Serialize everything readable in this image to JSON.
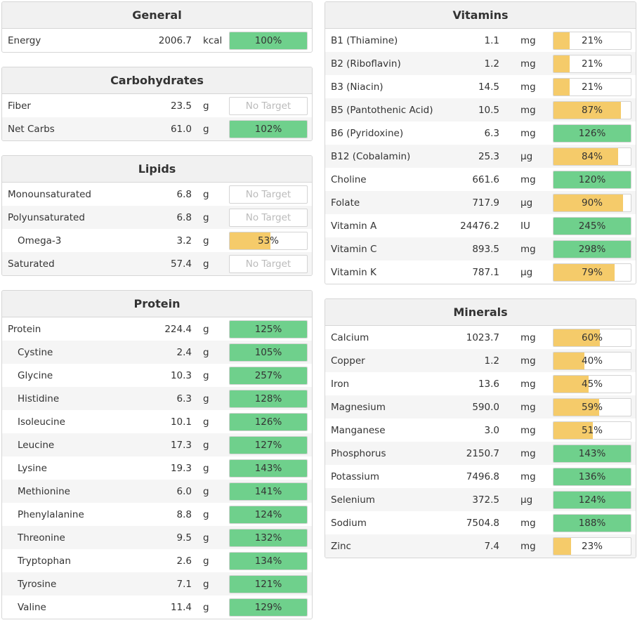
{
  "colors": {
    "green": "#6fd08c",
    "yellow": "#f5cb6a"
  },
  "left": [
    {
      "title": "General",
      "rows": [
        {
          "name": "Energy",
          "amount": "2006.7",
          "unit": "kcal",
          "pct": "100%",
          "value": 100,
          "color": "green"
        }
      ]
    },
    {
      "title": "Carbohydrates",
      "rows": [
        {
          "name": "Fiber",
          "amount": "23.5",
          "unit": "g",
          "pct": "No Target",
          "value": 0,
          "color": "none"
        },
        {
          "name": "Net Carbs",
          "amount": "61.0",
          "unit": "g",
          "pct": "102%",
          "value": 102,
          "color": "green"
        }
      ]
    },
    {
      "title": "Lipids",
      "rows": [
        {
          "name": "Monounsaturated",
          "amount": "6.8",
          "unit": "g",
          "pct": "No Target",
          "value": 0,
          "color": "none"
        },
        {
          "name": "Polyunsaturated",
          "amount": "6.8",
          "unit": "g",
          "pct": "No Target",
          "value": 0,
          "color": "none"
        },
        {
          "name": "Omega-3",
          "sub": true,
          "amount": "3.2",
          "unit": "g",
          "pct": "53%",
          "value": 53,
          "color": "yellow"
        },
        {
          "name": "Saturated",
          "amount": "57.4",
          "unit": "g",
          "pct": "No Target",
          "value": 0,
          "color": "none"
        }
      ]
    },
    {
      "title": "Protein",
      "rows": [
        {
          "name": "Protein",
          "amount": "224.4",
          "unit": "g",
          "pct": "125%",
          "value": 125,
          "color": "green"
        },
        {
          "name": "Cystine",
          "sub": true,
          "amount": "2.4",
          "unit": "g",
          "pct": "105%",
          "value": 105,
          "color": "green"
        },
        {
          "name": "Glycine",
          "sub": true,
          "amount": "10.3",
          "unit": "g",
          "pct": "257%",
          "value": 257,
          "color": "green"
        },
        {
          "name": "Histidine",
          "sub": true,
          "amount": "6.3",
          "unit": "g",
          "pct": "128%",
          "value": 128,
          "color": "green"
        },
        {
          "name": "Isoleucine",
          "sub": true,
          "amount": "10.1",
          "unit": "g",
          "pct": "126%",
          "value": 126,
          "color": "green"
        },
        {
          "name": "Leucine",
          "sub": true,
          "amount": "17.3",
          "unit": "g",
          "pct": "127%",
          "value": 127,
          "color": "green"
        },
        {
          "name": "Lysine",
          "sub": true,
          "amount": "19.3",
          "unit": "g",
          "pct": "143%",
          "value": 143,
          "color": "green"
        },
        {
          "name": "Methionine",
          "sub": true,
          "amount": "6.0",
          "unit": "g",
          "pct": "141%",
          "value": 141,
          "color": "green"
        },
        {
          "name": "Phenylalanine",
          "sub": true,
          "amount": "8.8",
          "unit": "g",
          "pct": "124%",
          "value": 124,
          "color": "green"
        },
        {
          "name": "Threonine",
          "sub": true,
          "amount": "9.5",
          "unit": "g",
          "pct": "132%",
          "value": 132,
          "color": "green"
        },
        {
          "name": "Tryptophan",
          "sub": true,
          "amount": "2.6",
          "unit": "g",
          "pct": "134%",
          "value": 134,
          "color": "green"
        },
        {
          "name": "Tyrosine",
          "sub": true,
          "amount": "7.1",
          "unit": "g",
          "pct": "121%",
          "value": 121,
          "color": "green"
        },
        {
          "name": "Valine",
          "sub": true,
          "amount": "11.4",
          "unit": "g",
          "pct": "129%",
          "value": 129,
          "color": "green"
        }
      ]
    }
  ],
  "right": [
    {
      "title": "Vitamins",
      "rows": [
        {
          "name": "B1 (Thiamine)",
          "amount": "1.1",
          "unit": "mg",
          "pct": "21%",
          "value": 21,
          "color": "yellow"
        },
        {
          "name": "B2 (Riboflavin)",
          "amount": "1.2",
          "unit": "mg",
          "pct": "21%",
          "value": 21,
          "color": "yellow"
        },
        {
          "name": "B3 (Niacin)",
          "amount": "14.5",
          "unit": "mg",
          "pct": "21%",
          "value": 21,
          "color": "yellow"
        },
        {
          "name": "B5 (Pantothenic Acid)",
          "amount": "10.5",
          "unit": "mg",
          "pct": "87%",
          "value": 87,
          "color": "yellow"
        },
        {
          "name": "B6 (Pyridoxine)",
          "amount": "6.3",
          "unit": "mg",
          "pct": "126%",
          "value": 126,
          "color": "green"
        },
        {
          "name": "B12 (Cobalamin)",
          "amount": "25.3",
          "unit": "µg",
          "pct": "84%",
          "value": 84,
          "color": "yellow"
        },
        {
          "name": "Choline",
          "amount": "661.6",
          "unit": "mg",
          "pct": "120%",
          "value": 120,
          "color": "green"
        },
        {
          "name": "Folate",
          "amount": "717.9",
          "unit": "µg",
          "pct": "90%",
          "value": 90,
          "color": "yellow"
        },
        {
          "name": "Vitamin A",
          "amount": "24476.2",
          "unit": "IU",
          "pct": "245%",
          "value": 245,
          "color": "green"
        },
        {
          "name": "Vitamin C",
          "amount": "893.5",
          "unit": "mg",
          "pct": "298%",
          "value": 298,
          "color": "green"
        },
        {
          "name": "Vitamin K",
          "amount": "787.1",
          "unit": "µg",
          "pct": "79%",
          "value": 79,
          "color": "yellow"
        }
      ]
    },
    {
      "title": "Minerals",
      "rows": [
        {
          "name": "Calcium",
          "amount": "1023.7",
          "unit": "mg",
          "pct": "60%",
          "value": 60,
          "color": "yellow"
        },
        {
          "name": "Copper",
          "amount": "1.2",
          "unit": "mg",
          "pct": "40%",
          "value": 40,
          "color": "yellow"
        },
        {
          "name": "Iron",
          "amount": "13.6",
          "unit": "mg",
          "pct": "45%",
          "value": 45,
          "color": "yellow"
        },
        {
          "name": "Magnesium",
          "amount": "590.0",
          "unit": "mg",
          "pct": "59%",
          "value": 59,
          "color": "yellow"
        },
        {
          "name": "Manganese",
          "amount": "3.0",
          "unit": "mg",
          "pct": "51%",
          "value": 51,
          "color": "yellow"
        },
        {
          "name": "Phosphorus",
          "amount": "2150.7",
          "unit": "mg",
          "pct": "143%",
          "value": 143,
          "color": "green"
        },
        {
          "name": "Potassium",
          "amount": "7496.8",
          "unit": "mg",
          "pct": "136%",
          "value": 136,
          "color": "green"
        },
        {
          "name": "Selenium",
          "amount": "372.5",
          "unit": "µg",
          "pct": "124%",
          "value": 124,
          "color": "green"
        },
        {
          "name": "Sodium",
          "amount": "7504.8",
          "unit": "mg",
          "pct": "188%",
          "value": 188,
          "color": "green"
        },
        {
          "name": "Zinc",
          "amount": "7.4",
          "unit": "mg",
          "pct": "23%",
          "value": 23,
          "color": "yellow"
        }
      ]
    }
  ]
}
